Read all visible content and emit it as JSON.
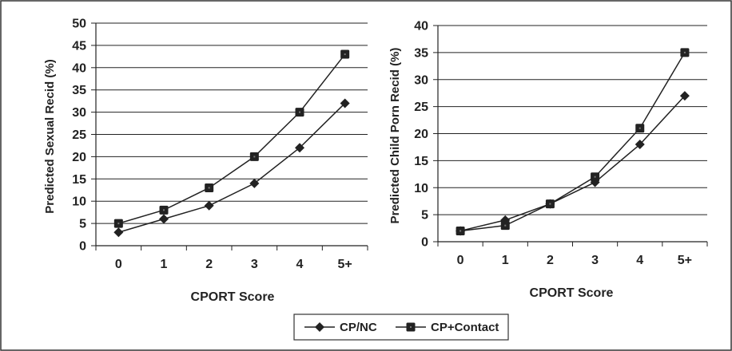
{
  "chart_data": [
    {
      "type": "line",
      "categories": [
        "0",
        "1",
        "2",
        "3",
        "4",
        "5+"
      ],
      "series": [
        {
          "name": "CP/NC",
          "values": [
            3,
            6,
            9,
            14,
            22,
            32
          ]
        },
        {
          "name": "CP+Contact",
          "values": [
            5,
            8,
            13,
            20,
            30,
            43
          ]
        }
      ],
      "title": "",
      "xlabel": "CPORT Score",
      "ylabel": "Predicted Sexual Recid (%)",
      "ylim": [
        0,
        50
      ],
      "yticks": [
        "0",
        "5",
        "10",
        "15",
        "20",
        "25",
        "30",
        "35",
        "40",
        "45",
        "50"
      ],
      "grid": true
    },
    {
      "type": "line",
      "categories": [
        "0",
        "1",
        "2",
        "3",
        "4",
        "5+"
      ],
      "series": [
        {
          "name": "CP/NC",
          "values": [
            2,
            4,
            7,
            11,
            18,
            27
          ]
        },
        {
          "name": "CP+Contact",
          "values": [
            2,
            3,
            7,
            12,
            21,
            35
          ]
        }
      ],
      "title": "",
      "xlabel": "CPORT Score",
      "ylabel": "Predicted Child Porn Recid (%)",
      "ylim": [
        0,
        40
      ],
      "yticks": [
        "0",
        "5",
        "10",
        "15",
        "20",
        "25",
        "30",
        "35",
        "40"
      ],
      "grid": true
    }
  ],
  "legend": {
    "placement": "bottom-center",
    "items": [
      {
        "label": "CP/NC",
        "marker": "diamond"
      },
      {
        "label": "CP+Contact",
        "marker": "square"
      }
    ]
  },
  "colors": {
    "line": "#222222",
    "grid": "#222222",
    "marker_fill": "#222222"
  }
}
